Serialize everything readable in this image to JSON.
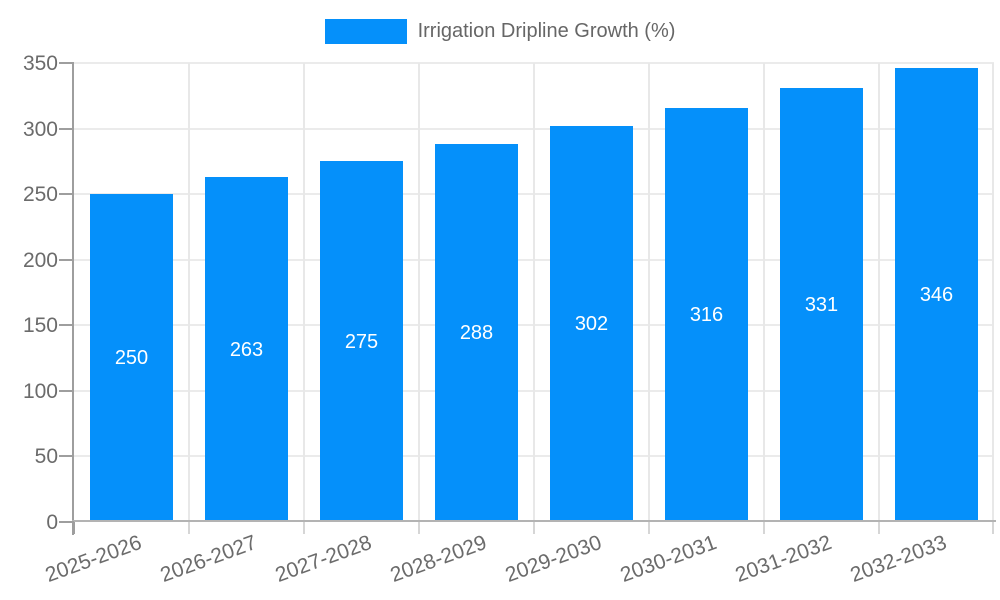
{
  "legend": {
    "label": "Irrigation Dripline Growth (%)",
    "swatch_color": "#0590FA"
  },
  "chart_data": {
    "type": "bar",
    "title": "Irrigation Dripline Growth (%)",
    "categories": [
      "2025-2026",
      "2026-2027",
      "2027-2028",
      "2028-2029",
      "2029-2030",
      "2030-2031",
      "2031-2032",
      "2032-2033"
    ],
    "values": [
      250,
      263,
      275,
      288,
      302,
      316,
      331,
      346
    ],
    "xlabel": "",
    "ylabel": "",
    "ylim": [
      0,
      350
    ],
    "yticks": [
      0,
      50,
      100,
      150,
      200,
      250,
      300,
      350
    ],
    "grid": true,
    "legend_position": "top",
    "x_tick_rotation_deg": -20,
    "bar_color": "#0590FA",
    "value_label_color": "#FFFFFF"
  },
  "colors": {
    "background": "#FFFFFF",
    "y_axis_line": "#9E9E9E",
    "x_axis_line": "#B3B3B3",
    "gridline": "#EBEBEB",
    "vertical_gridline": "#E8E8E8",
    "minor_tick": "#D6D6D6",
    "tick_label": "#6B6B6B",
    "legend_text": "#666666"
  }
}
